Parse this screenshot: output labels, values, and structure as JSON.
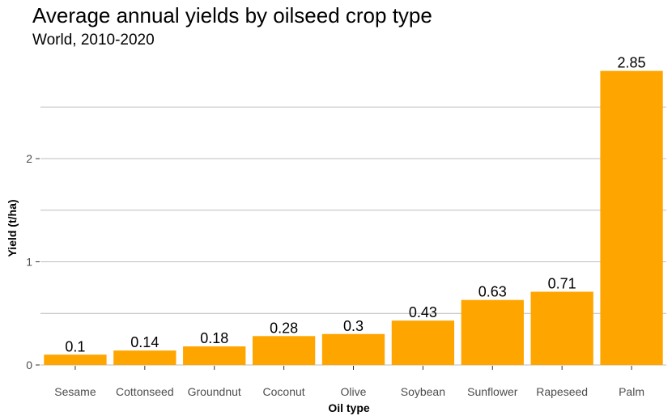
{
  "chart_data": {
    "type": "bar",
    "title": "Average annual yields by oilseed crop type",
    "subtitle": "World, 2010-2020",
    "xlabel": "Oil type",
    "ylabel": "Yield (t/ha)",
    "categories": [
      "Sesame",
      "Cottonseed",
      "Groundnut",
      "Coconut",
      "Olive",
      "Soybean",
      "Sunflower",
      "Rapeseed",
      "Palm"
    ],
    "values": [
      0.1,
      0.14,
      0.18,
      0.28,
      0.3,
      0.43,
      0.63,
      0.71,
      2.85
    ],
    "data_labels": [
      "0.1",
      "0.14",
      "0.18",
      "0.28",
      "0.3",
      "0.43",
      "0.63",
      "0.71",
      "2.85"
    ],
    "yticks": [
      0,
      1,
      2
    ],
    "ytick_labels": [
      "0",
      "1",
      "2"
    ],
    "ylim": [
      0,
      2.99
    ],
    "grid": "horizontal",
    "bar_color": "#FFA500",
    "grid_color": "#BEBEBE"
  }
}
